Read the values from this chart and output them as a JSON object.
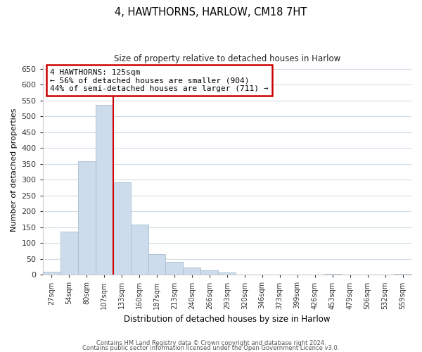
{
  "title": "4, HAWTHORNS, HARLOW, CM18 7HT",
  "subtitle": "Size of property relative to detached houses in Harlow",
  "xlabel": "Distribution of detached houses by size in Harlow",
  "ylabel": "Number of detached properties",
  "bar_labels": [
    "27sqm",
    "54sqm",
    "80sqm",
    "107sqm",
    "133sqm",
    "160sqm",
    "187sqm",
    "213sqm",
    "240sqm",
    "266sqm",
    "293sqm",
    "320sqm",
    "346sqm",
    "373sqm",
    "399sqm",
    "426sqm",
    "453sqm",
    "479sqm",
    "506sqm",
    "532sqm",
    "559sqm"
  ],
  "bar_values": [
    10,
    137,
    358,
    535,
    292,
    158,
    65,
    40,
    22,
    15,
    8,
    0,
    0,
    0,
    0,
    0,
    2,
    0,
    0,
    0,
    2
  ],
  "bar_color": "#ccdcec",
  "bar_edge_color": "#aabccc",
  "vline_color": "#cc0000",
  "vline_pos": 3.5,
  "ylim": [
    0,
    660
  ],
  "yticks": [
    0,
    50,
    100,
    150,
    200,
    250,
    300,
    350,
    400,
    450,
    500,
    550,
    600,
    650
  ],
  "annotation_title": "4 HAWTHORNS: 125sqm",
  "annotation_line1": "← 56% of detached houses are smaller (904)",
  "annotation_line2": "44% of semi-detached houses are larger (711) →",
  "annotation_box_color": "#ffffff",
  "annotation_box_edge": "#cc0000",
  "footer1": "Contains HM Land Registry data © Crown copyright and database right 2024.",
  "footer2": "Contains public sector information licensed under the Open Government Licence v3.0.",
  "background_color": "#ffffff",
  "grid_color": "#d0dce8"
}
